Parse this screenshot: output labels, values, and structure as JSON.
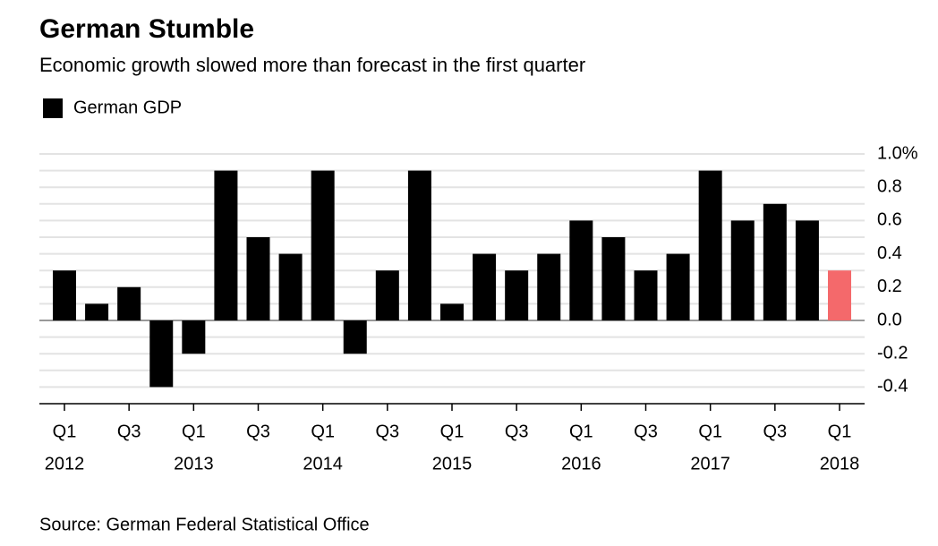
{
  "chart_data": {
    "type": "bar",
    "title": "German Stumble",
    "subtitle": "Economic growth slowed more than forecast in the first quarter",
    "source": "Source: German Federal Statistical Office",
    "series": [
      {
        "name": "German GDP",
        "color": "#000000",
        "values": [
          0.3,
          0.1,
          0.2,
          -0.4,
          -0.2,
          0.9,
          0.5,
          0.4,
          0.9,
          -0.2,
          0.3,
          0.9,
          0.1,
          0.4,
          0.3,
          0.4,
          0.6,
          0.5,
          0.3,
          0.4,
          0.9,
          0.6,
          0.7,
          0.6,
          0.3
        ],
        "colors": [
          "#000000",
          "#000000",
          "#000000",
          "#000000",
          "#000000",
          "#000000",
          "#000000",
          "#000000",
          "#000000",
          "#000000",
          "#000000",
          "#000000",
          "#000000",
          "#000000",
          "#000000",
          "#000000",
          "#000000",
          "#000000",
          "#000000",
          "#000000",
          "#000000",
          "#000000",
          "#000000",
          "#000000",
          "#f4696b"
        ]
      }
    ],
    "categories": [
      "Q1",
      null,
      "Q3",
      null,
      "Q1",
      null,
      "Q3",
      null,
      "Q1",
      null,
      "Q3",
      null,
      "Q1",
      null,
      "Q3",
      null,
      "Q1",
      null,
      "Q3",
      null,
      "Q1",
      null,
      "Q3",
      null,
      "Q1"
    ],
    "category_years": [
      "2012",
      null,
      null,
      null,
      "2013",
      null,
      null,
      null,
      "2014",
      null,
      null,
      null,
      "2015",
      null,
      null,
      null,
      "2016",
      null,
      null,
      null,
      "2017",
      null,
      null,
      null,
      "2018"
    ],
    "ylim": [
      -0.5,
      1.0
    ],
    "yticks": [
      {
        "value": 1.0,
        "label": "1.0%"
      },
      0.8,
      0.6,
      0.4,
      0.2,
      {
        "value": 0,
        "label": "0.0"
      },
      -0.2,
      -0.4
    ],
    "minor_yticks": [
      0.9,
      0.7,
      0.5,
      0.3,
      0.1,
      -0.1,
      -0.3
    ],
    "grid": true
  }
}
